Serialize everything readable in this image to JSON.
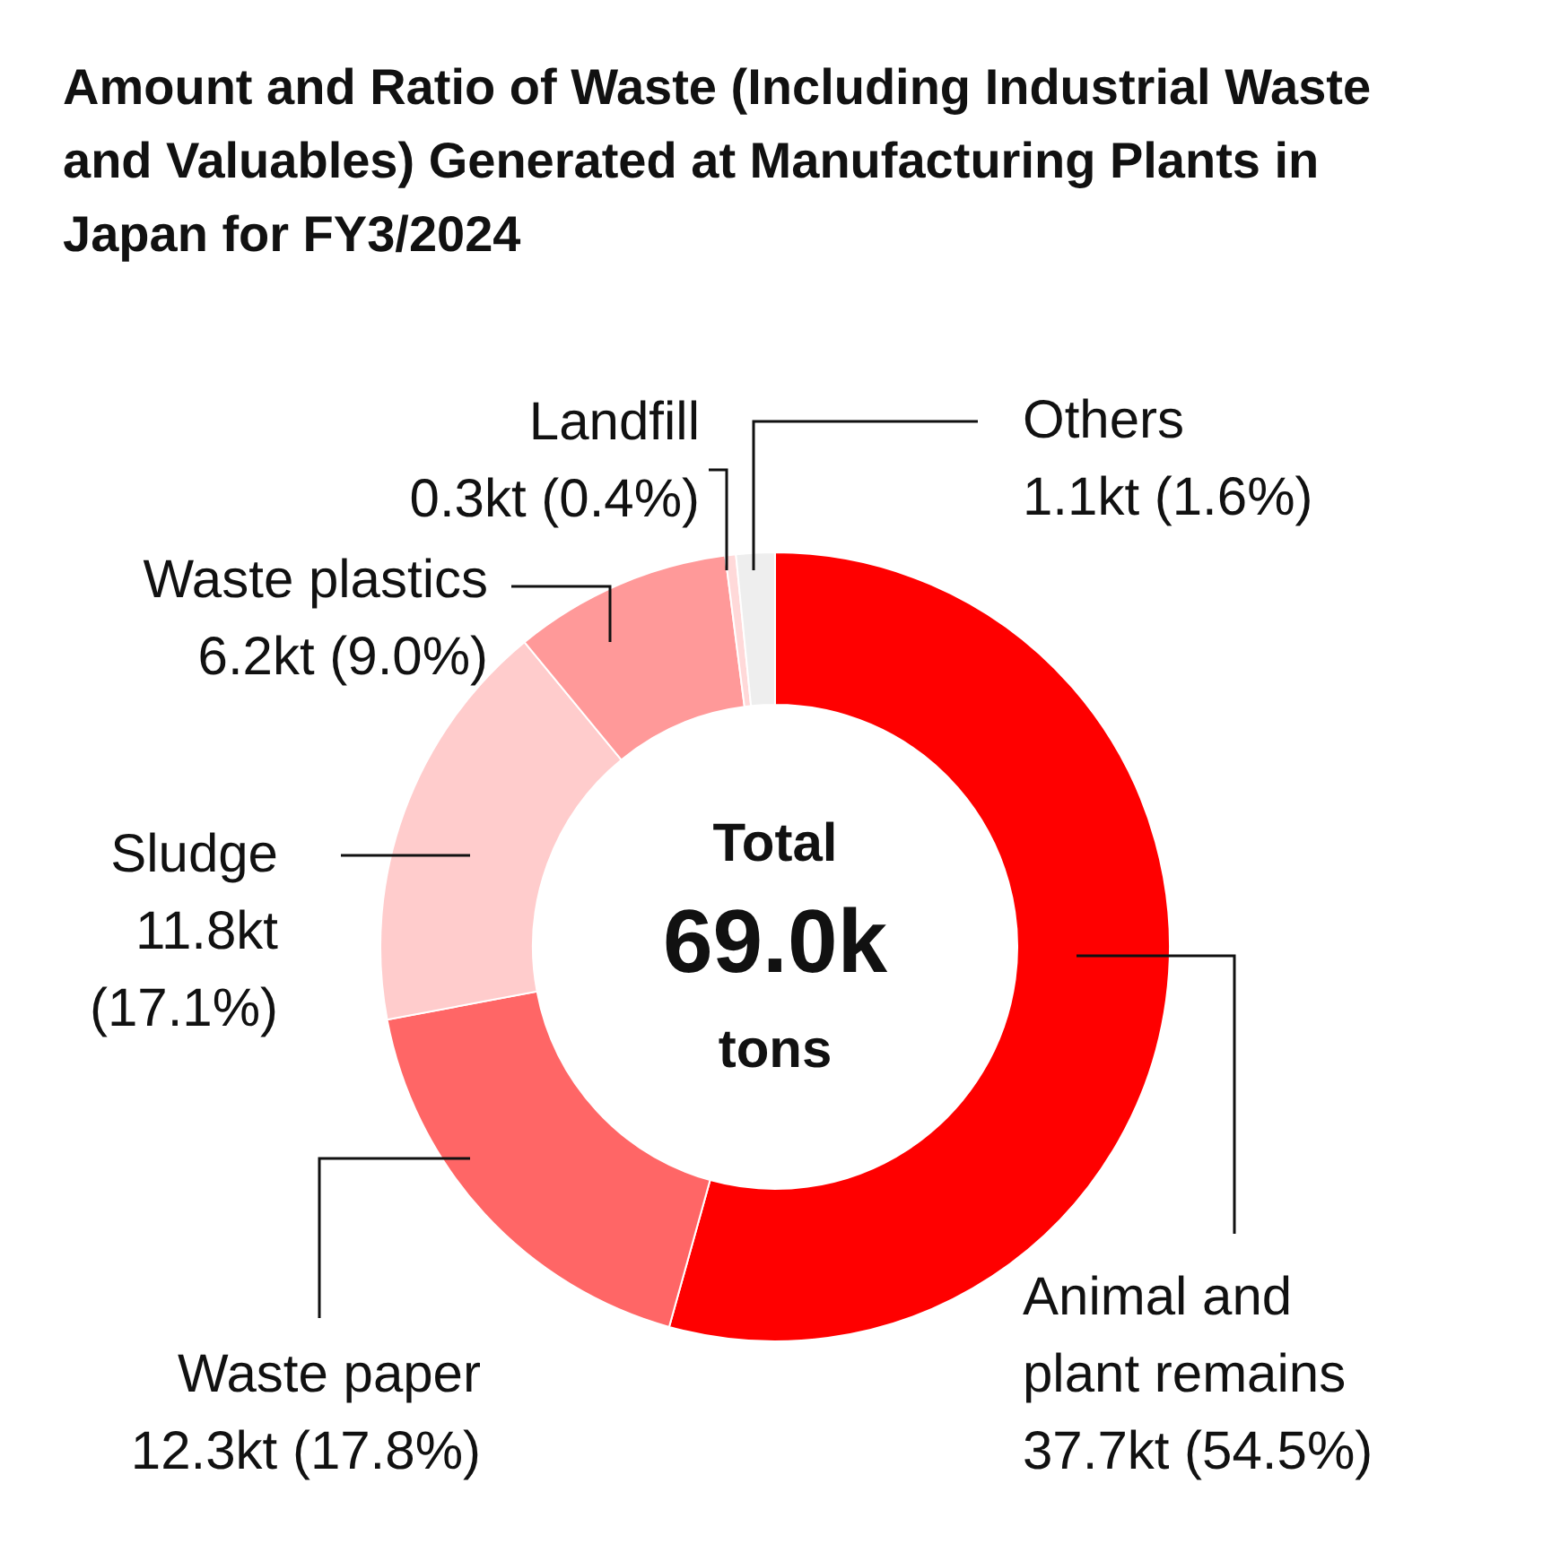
{
  "chart_data": {
    "type": "donut",
    "title": "Amount and Ratio of Waste (Including Industrial Waste and Valuables) Generated at Manufacturing Plants in Japan for FY3/2024",
    "categories": [
      "Animal and plant remains",
      "Waste paper",
      "Sludge",
      "Waste plastics",
      "Landfill",
      "Others"
    ],
    "values": [
      37.7,
      12.3,
      11.8,
      6.2,
      0.3,
      1.1
    ],
    "value_labels": [
      "37.7kt (54.5%)",
      "12.3kt (17.8%)",
      "11.8kt (17.1%)",
      "6.2kt (9.0%)",
      "0.3kt (0.4%)",
      "1.1kt (1.6%)"
    ],
    "colors": [
      "#ff0000",
      "#ff6666",
      "#ffcccc",
      "#ff9999",
      "#ffd9d9",
      "#eeeeee"
    ],
    "annotations": [
      "Total",
      "69.0k",
      "tons"
    ]
  }
}
